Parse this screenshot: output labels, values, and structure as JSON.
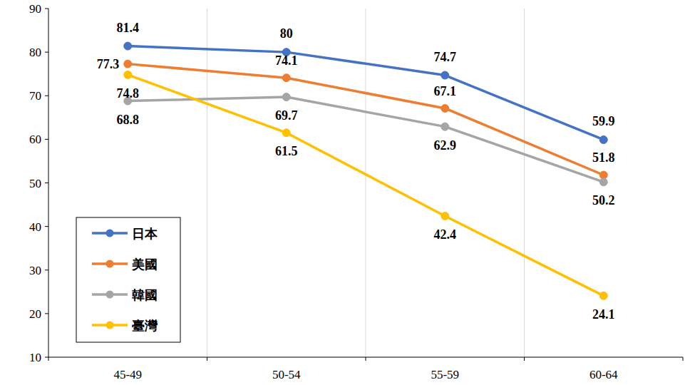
{
  "chart_data": {
    "type": "line",
    "categories": [
      "45-49",
      "50-54",
      "55-59",
      "60-64"
    ],
    "series": [
      {
        "name": "日本",
        "color": "#4472c4",
        "values": [
          81.4,
          80,
          74.7,
          59.9
        ],
        "marker": "circle"
      },
      {
        "name": "美國",
        "color": "#ed7d31",
        "values": [
          77.3,
          74.1,
          67.1,
          51.8
        ],
        "marker": "circle"
      },
      {
        "name": "韓國",
        "color": "#a5a5a5",
        "values": [
          68.8,
          69.7,
          62.9,
          50.2
        ],
        "marker": "circle"
      },
      {
        "name": "臺灣",
        "color": "#ffc000",
        "values": [
          74.8,
          61.5,
          42.4,
          24.1
        ],
        "marker": "circle"
      }
    ],
    "ylim": [
      10,
      90
    ],
    "yticks": [
      10,
      20,
      30,
      40,
      50,
      60,
      70,
      80,
      90
    ],
    "grid": true,
    "legend": "lower left",
    "data_labels": true
  }
}
